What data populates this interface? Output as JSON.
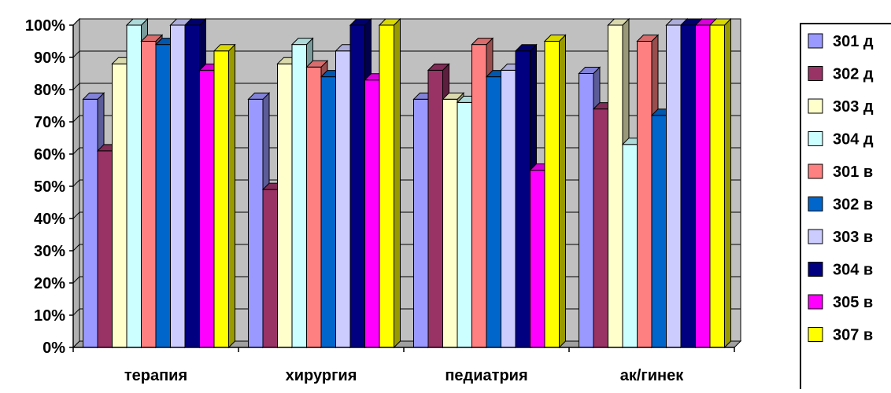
{
  "chart_data": {
    "type": "bar",
    "title": "",
    "xlabel": "",
    "ylabel": "",
    "ylim": [
      0,
      100
    ],
    "y_unit": "%",
    "y_ticks": [
      "0%",
      "10%",
      "20%",
      "30%",
      "40%",
      "50%",
      "60%",
      "70%",
      "80%",
      "90%",
      "100%"
    ],
    "grid": true,
    "legend_position": "right",
    "categories": [
      "терапия",
      "хирургия",
      "педиатрия",
      "ак/гинек"
    ],
    "series": [
      {
        "name": "301 д",
        "color": "#9999ff",
        "values": [
          77,
          77,
          77,
          85
        ]
      },
      {
        "name": "302 д",
        "color": "#993366",
        "values": [
          61,
          49,
          86,
          74
        ]
      },
      {
        "name": "303 д",
        "color": "#ffffcc",
        "values": [
          88,
          88,
          77,
          100
        ]
      },
      {
        "name": "304 д",
        "color": "#ccffff",
        "values": [
          100,
          94,
          76,
          63
        ]
      },
      {
        "name": "301 в",
        "color": "#ff8080",
        "values": [
          95,
          87,
          94,
          95
        ]
      },
      {
        "name": "302 в",
        "color": "#0066cc",
        "values": [
          94,
          84,
          84,
          72
        ]
      },
      {
        "name": "303 в",
        "color": "#ccccff",
        "values": [
          100,
          92,
          86,
          100
        ]
      },
      {
        "name": "304 в",
        "color": "#000080",
        "values": [
          100,
          100,
          92,
          100
        ]
      },
      {
        "name": "305 в",
        "color": "#ff00ff",
        "values": [
          86,
          83,
          55,
          100
        ]
      },
      {
        "name": "307 в",
        "color": "#ffff00",
        "values": [
          92,
          100,
          95,
          100
        ]
      }
    ]
  }
}
